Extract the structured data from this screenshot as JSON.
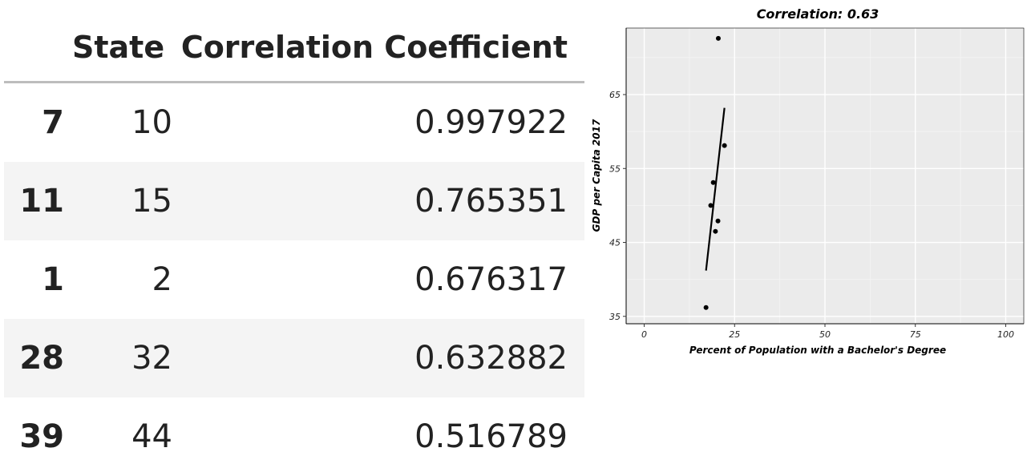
{
  "table": {
    "headers": [
      "",
      "State",
      "Correlation Coefficient"
    ],
    "rows": [
      {
        "index": "7",
        "state": "10",
        "correlation": "0.997922"
      },
      {
        "index": "11",
        "state": "15",
        "correlation": "0.765351"
      },
      {
        "index": "1",
        "state": "2",
        "correlation": "0.676317"
      },
      {
        "index": "28",
        "state": "32",
        "correlation": "0.632882"
      },
      {
        "index": "39",
        "state": "44",
        "correlation": "0.516789"
      }
    ]
  },
  "chart_data": {
    "type": "scatter",
    "title": "Correlation: 0.63",
    "xlabel": "Percent of Population with a Bachelor's Degree",
    "ylabel": "GDP per Capita 2017",
    "xlim": [
      -5,
      105
    ],
    "ylim": [
      34,
      74
    ],
    "xticks": [
      0,
      25,
      50,
      75,
      100
    ],
    "yticks": [
      35,
      45,
      55,
      65
    ],
    "grid": true,
    "background": "#ebebeb",
    "points": [
      {
        "x": 20.5,
        "y": 72.6
      },
      {
        "x": 22.2,
        "y": 58.1
      },
      {
        "x": 19.1,
        "y": 53.1
      },
      {
        "x": 18.4,
        "y": 50.0
      },
      {
        "x": 20.4,
        "y": 47.9
      },
      {
        "x": 19.7,
        "y": 46.5
      },
      {
        "x": 17.1,
        "y": 36.2
      }
    ],
    "fit_line": {
      "x": [
        17.1,
        22.2
      ],
      "y": [
        41.2,
        63.2
      ]
    }
  }
}
